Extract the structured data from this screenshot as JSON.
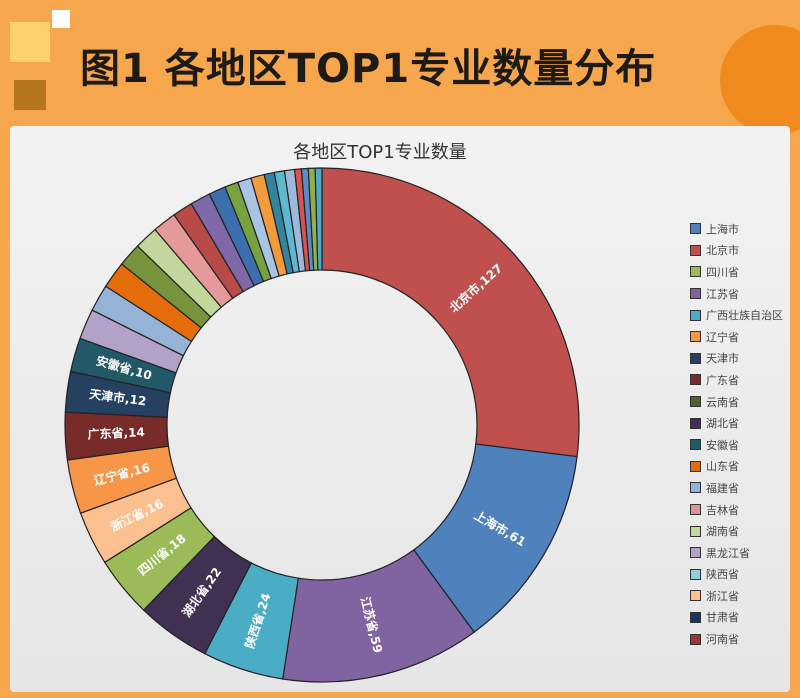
{
  "figure_title": "图1  各地区TOP1专业数量分布",
  "chart_data": {
    "type": "pie",
    "donut": true,
    "title": "各地区TOP1专业数量",
    "legend_position": "right",
    "slices": [
      {
        "name": "北京市",
        "value": 127,
        "color": "#c0504d",
        "label": "北京市,127"
      },
      {
        "name": "上海市",
        "value": 61,
        "color": "#4f81bd",
        "label": "上海市,61"
      },
      {
        "name": "江苏省",
        "value": 59,
        "color": "#8064a2",
        "label": "江苏省,59"
      },
      {
        "name": "陕西省",
        "value": 24,
        "color": "#4bacc6",
        "label": "陕西省,24"
      },
      {
        "name": "湖北省",
        "value": 22,
        "color": "#403152",
        "label": "湖北省,22"
      },
      {
        "name": "四川省",
        "value": 18,
        "color": "#9bbb59",
        "label": "四川省,18"
      },
      {
        "name": "浙江省",
        "value": 16,
        "color": "#fac090",
        "label": "浙江省,16"
      },
      {
        "name": "辽宁省",
        "value": 16,
        "color": "#f79646",
        "label": "辽宁省,16"
      },
      {
        "name": "广东省",
        "value": 14,
        "color": "#772c2a",
        "label": "广东省,14"
      },
      {
        "name": "天津市",
        "value": 12,
        "color": "#254061",
        "label": "天津市,12"
      },
      {
        "name": "安徽省",
        "value": 10,
        "color": "#215968",
        "label": "安徽省,10"
      },
      {
        "name": "黑龙江省",
        "value": 9,
        "color": "#b3a2c7",
        "label": ""
      },
      {
        "name": "福建省",
        "value": 8,
        "color": "#95b3d7",
        "label": ""
      },
      {
        "name": "山东省",
        "value": 8,
        "color": "#e46c0a",
        "label": ""
      },
      {
        "name": "云南省",
        "value": 7,
        "color": "#77933c",
        "label": ""
      },
      {
        "name": "湖南省",
        "value": 7,
        "color": "#c3d69b",
        "label": ""
      },
      {
        "name": "吉林省",
        "value": 7,
        "color": "#e6999a",
        "label": ""
      },
      {
        "name": "河南省",
        "value": 6,
        "color": "#b84a47",
        "label": ""
      },
      {
        "name": "",
        "value": 6,
        "color": "#7f68a8",
        "label": ""
      },
      {
        "name": "甘肃省",
        "value": 5,
        "color": "#3d6fae",
        "label": ""
      },
      {
        "name": "",
        "value": 4,
        "color": "#78a13f",
        "label": ""
      },
      {
        "name": "",
        "value": 4,
        "color": "#a9c3e3",
        "label": ""
      },
      {
        "name": "",
        "value": 4,
        "color": "#f29b3c",
        "label": ""
      },
      {
        "name": "广西壮族自治区",
        "value": 3,
        "color": "#31859c",
        "label": ""
      },
      {
        "name": "",
        "value": 3,
        "color": "#5fb8d2",
        "label": ""
      },
      {
        "name": "",
        "value": 3,
        "color": "#9fb9dc",
        "label": ""
      },
      {
        "name": "",
        "value": 2,
        "color": "#d9534f",
        "label": ""
      },
      {
        "name": "",
        "value": 2,
        "color": "#5a8cc8",
        "label": ""
      },
      {
        "name": "",
        "value": 2,
        "color": "#8fb04d",
        "label": ""
      },
      {
        "name": "",
        "value": 2,
        "color": "#4bacc6",
        "label": ""
      }
    ],
    "legend": [
      {
        "name": "上海市",
        "color": "#4f81bd"
      },
      {
        "name": "北京市",
        "color": "#c0504d"
      },
      {
        "name": "四川省",
        "color": "#9bbb59"
      },
      {
        "name": "江苏省",
        "color": "#8064a2"
      },
      {
        "name": "广西壮族自治区",
        "color": "#4bacc6"
      },
      {
        "name": "辽宁省",
        "color": "#f79646"
      },
      {
        "name": "天津市",
        "color": "#254061"
      },
      {
        "name": "广东省",
        "color": "#772c2a"
      },
      {
        "name": "云南省",
        "color": "#4f6228"
      },
      {
        "name": "湖北省",
        "color": "#403152"
      },
      {
        "name": "安徽省",
        "color": "#215968"
      },
      {
        "name": "山东省",
        "color": "#e46c0a"
      },
      {
        "name": "福建省",
        "color": "#95b3d7"
      },
      {
        "name": "吉林省",
        "color": "#d99694"
      },
      {
        "name": "湖南省",
        "color": "#c3d69b"
      },
      {
        "name": "黑龙江省",
        "color": "#b3a2c7"
      },
      {
        "name": "陕西省",
        "color": "#93cddd"
      },
      {
        "name": "浙江省",
        "color": "#fac090"
      },
      {
        "name": "甘肃省",
        "color": "#17375e"
      },
      {
        "name": "河南省",
        "color": "#953735"
      }
    ]
  }
}
